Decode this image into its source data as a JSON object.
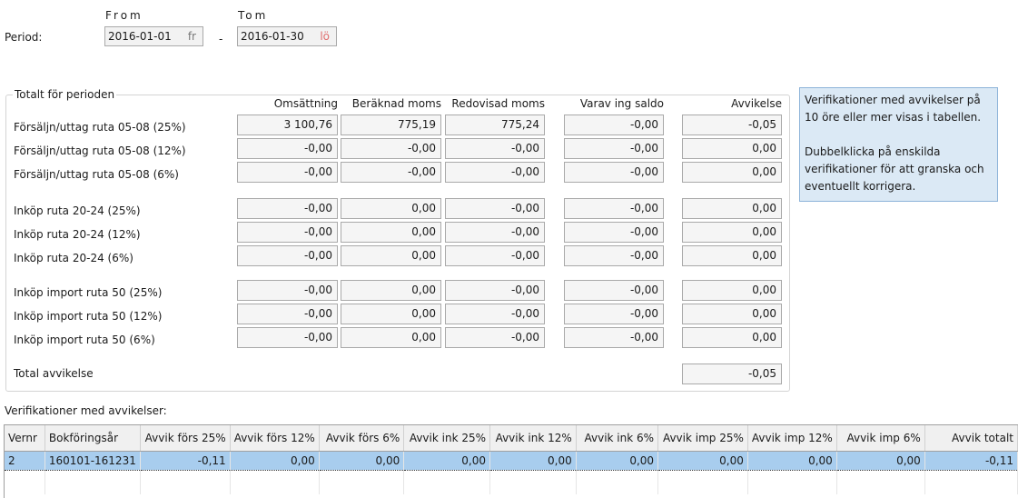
{
  "period": {
    "label": "Period:",
    "from_label": "From",
    "to_label": "Tom",
    "dash": "-",
    "from_date": "2016-01-01",
    "from_day": "fr",
    "to_date": "2016-01-30",
    "to_day": "lö"
  },
  "totals": {
    "group_title": "Totalt för perioden",
    "columns": [
      "Omsättning",
      "Beräknad moms",
      "Redovisad moms",
      "Varav ing saldo",
      "Avvikelse"
    ],
    "rows": [
      {
        "label": "Försäljn/uttag ruta 05-08 (25%)",
        "values": [
          "3 100,76",
          "775,19",
          "775,24",
          "-0,00",
          "-0,05"
        ]
      },
      {
        "label": "Försäljn/uttag ruta 05-08 (12%)",
        "values": [
          "-0,00",
          "-0,00",
          "-0,00",
          "-0,00",
          "0,00"
        ]
      },
      {
        "label": "Försäljn/uttag ruta 05-08 (6%)",
        "values": [
          "-0,00",
          "-0,00",
          "-0,00",
          "-0,00",
          "0,00"
        ]
      },
      {
        "label": "Inköp ruta 20-24 (25%)",
        "values": [
          "-0,00",
          "0,00",
          "-0,00",
          "-0,00",
          "0,00"
        ]
      },
      {
        "label": "Inköp ruta 20-24 (12%)",
        "values": [
          "-0,00",
          "0,00",
          "-0,00",
          "-0,00",
          "0,00"
        ]
      },
      {
        "label": "Inköp ruta 20-24 (6%)",
        "values": [
          "-0,00",
          "0,00",
          "-0,00",
          "-0,00",
          "0,00"
        ]
      },
      {
        "label": "Inköp import ruta 50 (25%)",
        "values": [
          "-0,00",
          "0,00",
          "-0,00",
          "-0,00",
          "0,00"
        ]
      },
      {
        "label": "Inköp import ruta 50 (12%)",
        "values": [
          "-0,00",
          "0,00",
          "-0,00",
          "-0,00",
          "0,00"
        ]
      },
      {
        "label": "Inköp import ruta 50 (6%)",
        "values": [
          "-0,00",
          "0,00",
          "-0,00",
          "-0,00",
          "0,00"
        ]
      }
    ],
    "total_label": "Total avvikelse",
    "total_value": "-0,05"
  },
  "info": {
    "line1": "Verifikationer med avvikelser på 10 öre eller mer visas i tabellen.",
    "line2": "Dubbelklicka på enskilda verifikationer för att granska och eventuellt korrigera."
  },
  "grid": {
    "title": "Verifikationer med avvikelser:",
    "headers": [
      "Vernr",
      "Bokföringsår",
      "Avvik förs 25%",
      "Avvik förs 12%",
      "Avvik förs 6%",
      "Avvik ink 25%",
      "Avvik ink 12%",
      "Avvik ink 6%",
      "Avvik imp 25%",
      "Avvik imp 12%",
      "Avvik imp 6%",
      "Avvik totalt"
    ],
    "rows": [
      [
        "2",
        "160101-161231",
        "-0,11",
        "0,00",
        "0,00",
        "0,00",
        "0,00",
        "0,00",
        "0,00",
        "0,00",
        "0,00",
        "-0,11"
      ]
    ]
  }
}
